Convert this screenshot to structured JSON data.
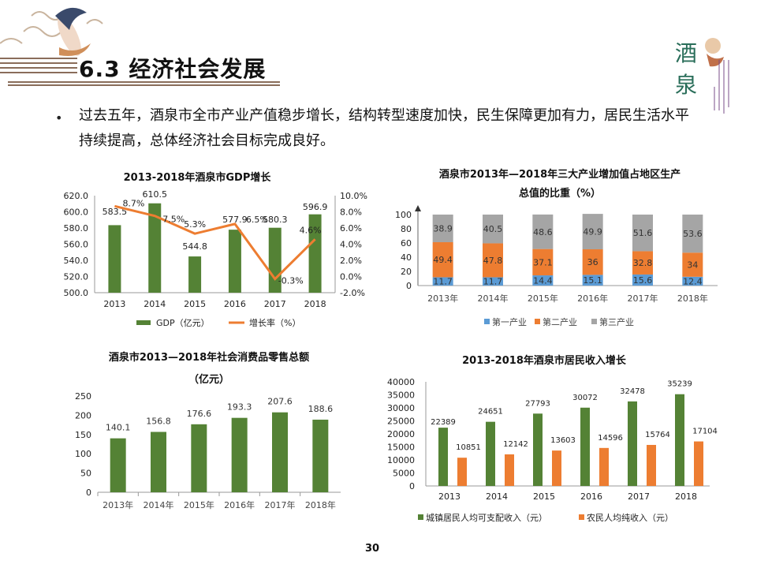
{
  "header": {
    "title": "6.3 经济社会发展",
    "logo_chars": [
      "酒",
      "泉"
    ]
  },
  "body": {
    "bullet": "过去五年，酒泉市全市产业产值稳步增长，结构转型速度加快，民生保障更加有力，居民生活水平持续提高，总体经济社会目标完成良好。"
  },
  "footer": {
    "page_number": "30"
  },
  "colors": {
    "green": "#548235",
    "orange": "#ED7D31",
    "blue": "#5B9BD5",
    "gray": "#A5A5A5"
  },
  "chart_data": [
    {
      "type": "bar",
      "title": "2013-2018年酒泉市GDP增长",
      "categories": [
        "2013",
        "2014",
        "2015",
        "2016",
        "2017",
        "2018"
      ],
      "series": [
        {
          "name": "GDP（亿元）",
          "type": "bar",
          "axis": "left",
          "values": [
            583.5,
            610.5,
            544.8,
            577.9,
            580.3,
            596.9
          ],
          "labels": [
            "583.5",
            "610.5",
            "544.8",
            "577.9",
            "580.3",
            "596.9"
          ]
        },
        {
          "name": "增长率（%）",
          "type": "line",
          "axis": "right",
          "values": [
            8.7,
            7.5,
            5.3,
            6.5,
            -0.3,
            4.6
          ],
          "labels": [
            "8.7%",
            "7.5%",
            "5.3%",
            "6.5%",
            "-0.3%",
            "4.6%"
          ]
        }
      ],
      "ylim": [
        500,
        620
      ],
      "yticks": [
        "620.0",
        "600.0",
        "580.0",
        "560.0",
        "540.0",
        "520.0",
        "500.0"
      ],
      "y2lim": [
        -2,
        10
      ],
      "y2ticks": [
        "10.0%",
        "8.0%",
        "6.0%",
        "4.0%",
        "2.0%",
        "0.0%",
        "-2.0%"
      ],
      "legend": "bottom"
    },
    {
      "type": "bar",
      "stacked": true,
      "title": "酒泉市2013年—2018年三大产业增加值占地区生产总值的比重（%）",
      "title_lines": [
        "酒泉市2013年—2018年三大产业增加值占地区生产",
        "总值的比重（%）"
      ],
      "categories": [
        "2013年",
        "2014年",
        "2015年",
        "2016年",
        "2017年",
        "2018年"
      ],
      "series": [
        {
          "name": "第一产业",
          "values": [
            11.7,
            11.7,
            14.4,
            15.1,
            15.6,
            12.4
          ],
          "labels": [
            "11.7",
            "11.7",
            "14.4",
            "15.1",
            "15.6",
            "12.4"
          ]
        },
        {
          "name": "第二产业",
          "values": [
            49.4,
            47.8,
            37.1,
            36,
            32.8,
            34
          ],
          "labels": [
            "49.4",
            "47.8",
            "37.1",
            "36",
            "32.8",
            "34"
          ]
        },
        {
          "name": "第三产业",
          "values": [
            38.9,
            40.5,
            48.6,
            49.9,
            51.6,
            53.6
          ],
          "labels": [
            "38.9",
            "40.5",
            "48.6",
            "49.9",
            "51.6",
            "53.6"
          ]
        }
      ],
      "ylim": [
        0,
        100
      ],
      "yticks": [
        "100",
        "80",
        "60",
        "40",
        "20",
        "0"
      ],
      "legend": "bottom"
    },
    {
      "type": "bar",
      "title": "酒泉市2013—2018年社会消费品零售总额（亿元）",
      "title_lines": [
        "酒泉市2013—2018年社会消费品零售总额",
        "（亿元）"
      ],
      "categories": [
        "2013年",
        "2014年",
        "2015年",
        "2016年",
        "2017年",
        "2018年"
      ],
      "series": [
        {
          "name": "",
          "values": [
            140.1,
            156.8,
            176.6,
            193.3,
            207.6,
            188.6
          ],
          "labels": [
            "140.1",
            "156.8",
            "176.6",
            "193.3",
            "207.6",
            "188.6"
          ]
        }
      ],
      "ylim": [
        0,
        250
      ],
      "yticks": [
        "250",
        "200",
        "150",
        "100",
        "50",
        "0"
      ]
    },
    {
      "type": "bar",
      "title": "2013-2018年酒泉市居民收入增长",
      "categories": [
        "2013",
        "2014",
        "2015",
        "2016",
        "2017",
        "2018"
      ],
      "series": [
        {
          "name": "城镇居民人均可支配收入（元）",
          "values": [
            22389,
            24651,
            27793,
            30072,
            32478,
            35239
          ],
          "labels": [
            "22389",
            "24651",
            "27793",
            "30072",
            "32478",
            "35239"
          ]
        },
        {
          "name": "农民人均纯收入（元）",
          "values": [
            10851,
            12142,
            13603,
            14596,
            15764,
            17104
          ],
          "labels": [
            "10851",
            "12142",
            "13603",
            "14596",
            "15764",
            "17104"
          ]
        }
      ],
      "ylim": [
        0,
        40000
      ],
      "yticks": [
        "40000",
        "35000",
        "30000",
        "25000",
        "20000",
        "15000",
        "10000",
        "5000",
        "0"
      ],
      "legend": "bottom"
    }
  ]
}
